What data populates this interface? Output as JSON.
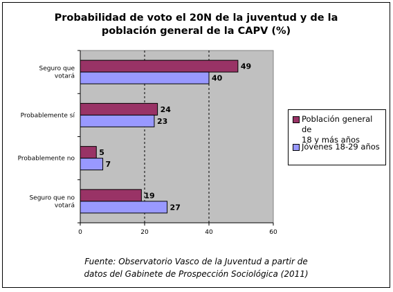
{
  "chart_data": {
    "type": "bar",
    "orientation": "horizontal",
    "title": "Probabilidad de voto el 20N de la juventud y de la población general de la CAPV (%)",
    "categories": [
      "Seguro que votará",
      "Probablemente sí",
      "Probablemente no",
      "Seguro que no votará"
    ],
    "series": [
      {
        "name": "Población general de 18 y más años",
        "values": [
          49,
          24,
          5,
          19
        ],
        "color": "#993366"
      },
      {
        "name": "Jóvenes 18-29 años",
        "values": [
          40,
          23,
          7,
          27
        ],
        "color": "#9999ff"
      }
    ],
    "xlim": [
      0,
      60
    ],
    "x_ticks": [
      0,
      20,
      40,
      60
    ],
    "grid": "vertical dashed",
    "plot_background": "#c0c0c0",
    "legend_position": "right",
    "source": "Fuente: Observatorio Vasco de la Juventud a partir de datos del Gabinete de Prospección Sociológica (2011)"
  },
  "title_lines": [
    "Probabilidad de voto el 20N de la juventud y de la",
    "población general de la CAPV (%)"
  ],
  "category_label_lines": [
    [
      "Seguro que",
      "votará"
    ],
    [
      "Probablemente sí"
    ],
    [
      "Probablemente no"
    ],
    [
      "Seguro que no",
      "votará"
    ]
  ],
  "legend_lines": [
    [
      "Población general de",
      "18 y más años"
    ],
    [
      "Jóvenes 18-29 años"
    ]
  ],
  "source_lines": [
    "Fuente: Observatorio Vasco de la Juventud a partir de",
    "datos del Gabinete de Prospección Sociológica (2011)"
  ]
}
